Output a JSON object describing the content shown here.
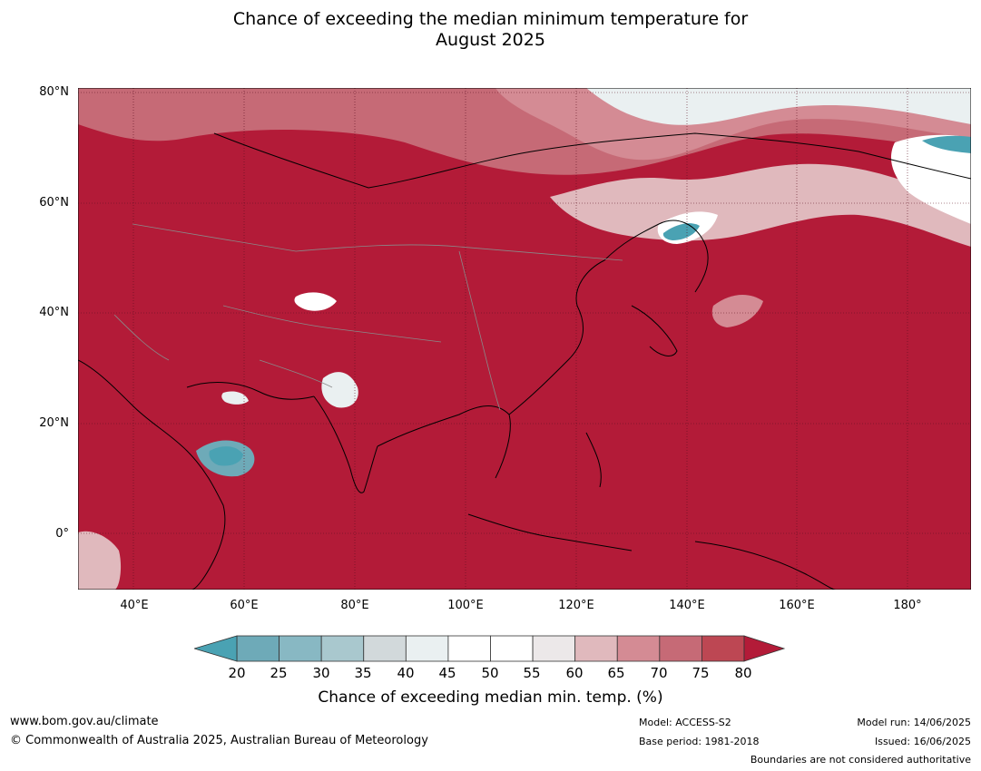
{
  "title_line1": "Chance of exceeding the median minimum temperature for",
  "title_line2": "August 2025",
  "lat_labels": [
    "80°N",
    "60°N",
    "40°N",
    "20°N",
    "0°"
  ],
  "lon_labels": [
    "40°E",
    "60°E",
    "80°E",
    "100°E",
    "120°E",
    "140°E",
    "160°E",
    "180°"
  ],
  "colorbar": {
    "ticks": [
      "20",
      "25",
      "30",
      "35",
      "40",
      "45",
      "50",
      "55",
      "60",
      "65",
      "70",
      "75",
      "80"
    ],
    "colors": [
      "#6eaab8",
      "#88b8c3",
      "#a9c8ce",
      "#d2d9db",
      "#eaf0f1",
      "#ffffff",
      "#ffffff",
      "#ece8e9",
      "#e0b9bd",
      "#d48b94",
      "#c66a76",
      "#bd4753"
    ],
    "under_color": "#4aa2b3",
    "over_color": "#b31b38",
    "title": "Chance of exceeding median min. temp. (%)"
  },
  "footer": {
    "website": "www.bom.gov.au/climate",
    "copyright": "© Commonwealth of Australia 2025, Australian Bureau of Meteorology",
    "model": "Model: ACCESS-S2",
    "base_period": "Base period: 1981-2018",
    "model_run": "Model run: 14/06/2025",
    "issued": "Issued: 16/06/2025",
    "disclaimer": "Boundaries are not considered authoritative"
  }
}
